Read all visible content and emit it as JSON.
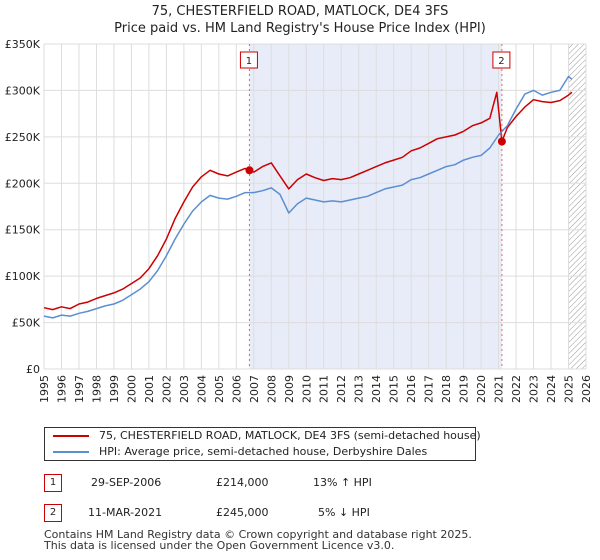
{
  "title_line1": "75, CHESTERFIELD ROAD, MATLOCK, DE4 3FS",
  "title_line2": "Price paid vs. HM Land Registry's House Price Index (HPI)",
  "chart_data": {
    "type": "line",
    "title": "75, CHESTERFIELD ROAD, MATLOCK, DE4 3FS — Price paid vs. HM Land Registry's House Price Index (HPI)",
    "xlabel": "",
    "ylabel": "",
    "xlim": [
      1995,
      2026
    ],
    "ylim": [
      0,
      350000
    ],
    "x_ticks": [
      1995,
      1996,
      1997,
      1998,
      1999,
      2000,
      2001,
      2002,
      2003,
      2004,
      2005,
      2006,
      2007,
      2008,
      2009,
      2010,
      2011,
      2012,
      2013,
      2014,
      2015,
      2016,
      2017,
      2018,
      2019,
      2020,
      2021,
      2022,
      2023,
      2024,
      2025,
      2026
    ],
    "y_ticks": [
      {
        "value": 0,
        "label": "£0"
      },
      {
        "value": 50000,
        "label": "£50K"
      },
      {
        "value": 100000,
        "label": "£100K"
      },
      {
        "value": 150000,
        "label": "£150K"
      },
      {
        "value": 200000,
        "label": "£200K"
      },
      {
        "value": 250000,
        "label": "£250K"
      },
      {
        "value": 300000,
        "label": "£300K"
      },
      {
        "value": 350000,
        "label": "£350K"
      }
    ],
    "grid": true,
    "shaded_region": {
      "from": 2006.75,
      "to": 2021.19
    },
    "future_hatch_from": 2025.0,
    "series": [
      {
        "name": "75, CHESTERFIELD ROAD, MATLOCK, DE4 3FS (semi-detached house)",
        "color": "#cc0000",
        "x": [
          1995,
          1995.5,
          1996,
          1996.5,
          1997,
          1997.5,
          1998,
          1998.5,
          1999,
          1999.5,
          2000,
          2000.5,
          2001,
          2001.5,
          2002,
          2002.5,
          2003,
          2003.5,
          2004,
          2004.5,
          2005,
          2005.5,
          2006,
          2006.5,
          2006.75,
          2007,
          2007.5,
          2008,
          2008.5,
          2009,
          2009.5,
          2010,
          2010.5,
          2011,
          2011.5,
          2012,
          2012.5,
          2013,
          2013.5,
          2014,
          2014.5,
          2015,
          2015.5,
          2016,
          2016.5,
          2017,
          2017.5,
          2018,
          2018.5,
          2019,
          2019.5,
          2020,
          2020.5,
          2020.9,
          2021.19,
          2021.5,
          2022,
          2022.5,
          2023,
          2023.5,
          2024,
          2024.5,
          2025,
          2025.2
        ],
        "y": [
          66000,
          64000,
          67000,
          65000,
          70000,
          72000,
          76000,
          79000,
          82000,
          86000,
          92000,
          98000,
          108000,
          122000,
          140000,
          162000,
          180000,
          196000,
          207000,
          214000,
          210000,
          208000,
          212000,
          216000,
          214000,
          212000,
          218000,
          222000,
          208000,
          194000,
          204000,
          210000,
          206000,
          203000,
          205000,
          204000,
          206000,
          210000,
          214000,
          218000,
          222000,
          225000,
          228000,
          235000,
          238000,
          243000,
          248000,
          250000,
          252000,
          256000,
          262000,
          265000,
          270000,
          298000,
          245000,
          260000,
          272000,
          282000,
          290000,
          288000,
          287000,
          289000,
          295000,
          298000
        ]
      },
      {
        "name": "HPI: Average price, semi-detached house, Derbyshire Dales",
        "color": "#5b8fd0",
        "x": [
          1995,
          1995.5,
          1996,
          1996.5,
          1997,
          1997.5,
          1998,
          1998.5,
          1999,
          1999.5,
          2000,
          2000.5,
          2001,
          2001.5,
          2002,
          2002.5,
          2003,
          2003.5,
          2004,
          2004.5,
          2005,
          2005.5,
          2006,
          2006.5,
          2007,
          2007.5,
          2008,
          2008.5,
          2009,
          2009.5,
          2010,
          2010.5,
          2011,
          2011.5,
          2012,
          2012.5,
          2013,
          2013.5,
          2014,
          2014.5,
          2015,
          2015.5,
          2016,
          2016.5,
          2017,
          2017.5,
          2018,
          2018.5,
          2019,
          2019.5,
          2020,
          2020.5,
          2021,
          2021.5,
          2022,
          2022.5,
          2023,
          2023.5,
          2024,
          2024.5,
          2025,
          2025.2
        ],
        "y": [
          57000,
          55000,
          58000,
          57000,
          60000,
          62000,
          65000,
          68000,
          70000,
          74000,
          80000,
          86000,
          94000,
          106000,
          122000,
          140000,
          156000,
          170000,
          180000,
          187000,
          184000,
          183000,
          186000,
          190000,
          190000,
          192000,
          195000,
          188000,
          168000,
          178000,
          184000,
          182000,
          180000,
          181000,
          180000,
          182000,
          184000,
          186000,
          190000,
          194000,
          196000,
          198000,
          204000,
          206000,
          210000,
          214000,
          218000,
          220000,
          225000,
          228000,
          230000,
          238000,
          252000,
          262000,
          280000,
          296000,
          300000,
          295000,
          298000,
          300000,
          315000,
          312000
        ]
      }
    ],
    "annotations": [
      {
        "label": "1",
        "x": 2006.75,
        "y": 214000,
        "date": "29-SEP-2006",
        "price": "£214,000",
        "hpi": "13% ↑ HPI"
      },
      {
        "label": "2",
        "x": 2021.19,
        "y": 245000,
        "date": "11-MAR-2021",
        "price": "£245,000",
        "hpi": "5% ↓ HPI"
      }
    ]
  },
  "legend": {
    "entries": [
      {
        "label": "75, CHESTERFIELD ROAD, MATLOCK, DE4 3FS (semi-detached house)",
        "color": "#cc0000"
      },
      {
        "label": "HPI: Average price, semi-detached house, Derbyshire Dales",
        "color": "#5b8fd0"
      }
    ]
  },
  "transactions": [
    {
      "badge": "1",
      "date": "29-SEP-2006",
      "price": "£214,000",
      "hpi": "13% ↑ HPI"
    },
    {
      "badge": "2",
      "date": "11-MAR-2021",
      "price": "£245,000",
      "hpi": "5% ↓ HPI"
    }
  ],
  "footer": {
    "line1": "Contains HM Land Registry data © Crown copyright and database right 2025.",
    "line2": "This data is licensed under the Open Government Licence v3.0."
  }
}
